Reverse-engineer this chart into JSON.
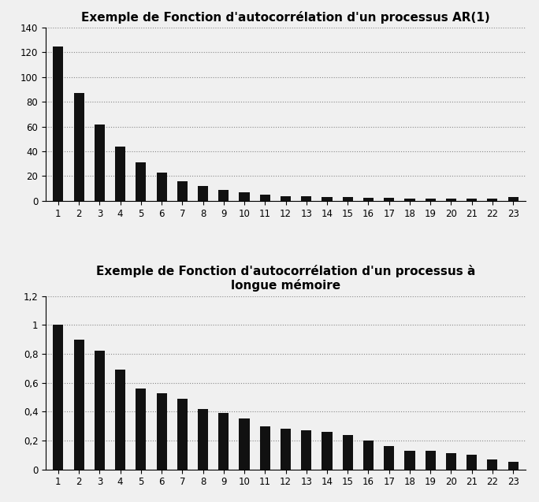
{
  "chart1": {
    "title": "Exemple de Fonction d'autocorrélation d'un processus AR(1)",
    "categories": [
      1,
      2,
      3,
      4,
      5,
      6,
      7,
      8,
      9,
      10,
      11,
      12,
      13,
      14,
      15,
      16,
      17,
      18,
      19,
      20,
      21,
      22,
      23
    ],
    "values": [
      125,
      87,
      62,
      44,
      31,
      23,
      16,
      12,
      9,
      7,
      5,
      4,
      4,
      3,
      3,
      2.5,
      2.5,
      2,
      2,
      2,
      2,
      2,
      3
    ],
    "ylim": [
      0,
      140
    ],
    "yticks": [
      0,
      20,
      40,
      60,
      80,
      100,
      120,
      140
    ],
    "bar_color": "#111111"
  },
  "chart2": {
    "title_line1": "Exemple de Fonction d'autocorrélation d'un processus à",
    "title_line2": "longue mémoire",
    "categories": [
      1,
      2,
      3,
      4,
      5,
      6,
      7,
      8,
      9,
      10,
      11,
      12,
      13,
      14,
      15,
      16,
      17,
      18,
      19,
      20,
      21,
      22,
      23
    ],
    "values": [
      1.0,
      0.9,
      0.82,
      0.69,
      0.56,
      0.53,
      0.49,
      0.42,
      0.39,
      0.35,
      0.3,
      0.28,
      0.27,
      0.26,
      0.24,
      0.2,
      0.16,
      0.13,
      0.13,
      0.11,
      0.1,
      0.07,
      0.05
    ],
    "ylim": [
      0,
      1.2
    ],
    "yticks": [
      0,
      0.2,
      0.4,
      0.6,
      0.8,
      1.0,
      1.2
    ],
    "bar_color": "#111111"
  },
  "fig_background": "#f0f0f0",
  "grid_color": "#888888",
  "grid_linestyle": ":",
  "grid_linewidth": 0.8,
  "title_fontsize": 11,
  "title_fontweight": "bold",
  "tick_fontsize": 8.5,
  "bar_width": 0.5
}
